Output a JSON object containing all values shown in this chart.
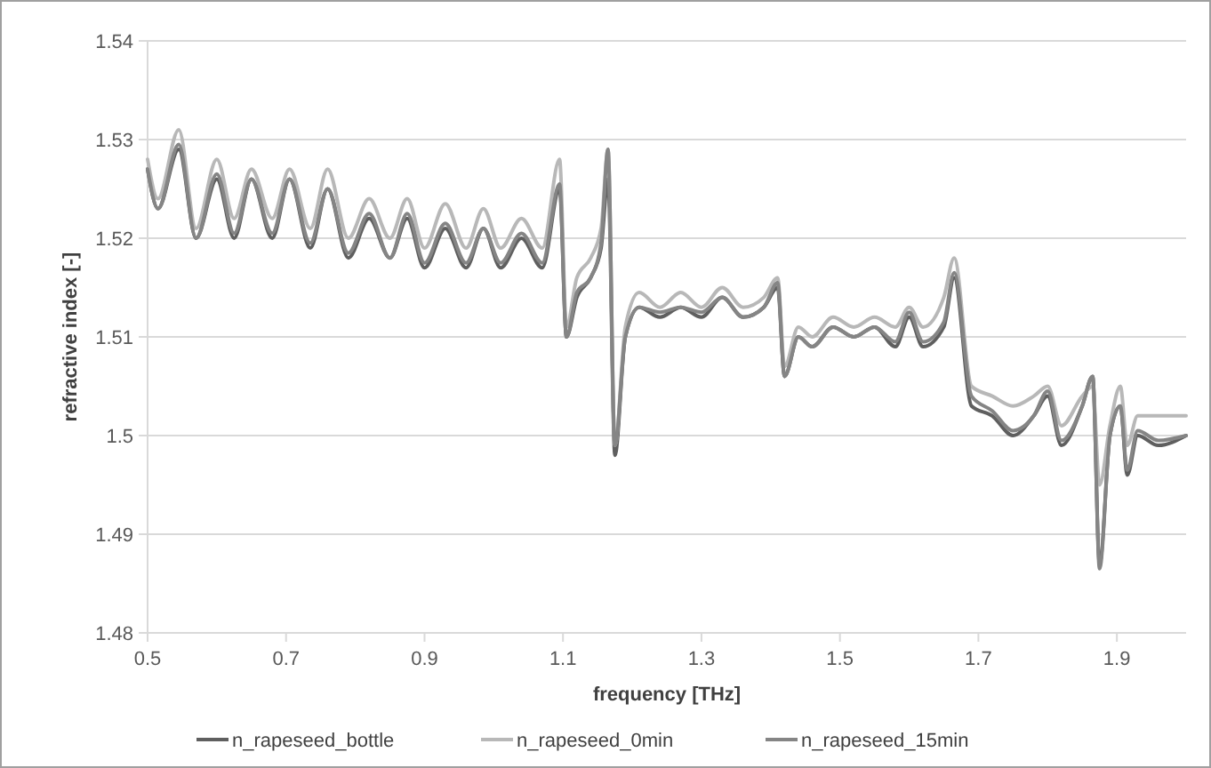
{
  "chart_data": {
    "type": "line",
    "xlabel": "frequency [THz]",
    "ylabel": "refractive index [-]",
    "x": [
      0.5,
      0.515,
      0.545,
      0.57,
      0.6,
      0.625,
      0.65,
      0.68,
      0.705,
      0.735,
      0.76,
      0.79,
      0.82,
      0.85,
      0.875,
      0.9,
      0.93,
      0.96,
      0.985,
      1.01,
      1.04,
      1.07,
      1.095,
      1.105,
      1.12,
      1.14,
      1.155,
      1.165,
      1.175,
      1.19,
      1.21,
      1.24,
      1.27,
      1.3,
      1.33,
      1.36,
      1.39,
      1.41,
      1.42,
      1.44,
      1.46,
      1.49,
      1.52,
      1.55,
      1.58,
      1.6,
      1.62,
      1.65,
      1.665,
      1.69,
      1.72,
      1.75,
      1.78,
      1.8,
      1.82,
      1.85,
      1.865,
      1.875,
      1.89,
      1.905,
      1.915,
      1.93,
      1.96,
      2.0
    ],
    "series": [
      {
        "name": "n_rapeseed_bottle",
        "color": "#5f5f5f",
        "values": [
          1.527,
          1.523,
          1.529,
          1.52,
          1.526,
          1.52,
          1.526,
          1.52,
          1.526,
          1.519,
          1.525,
          1.518,
          1.522,
          1.518,
          1.522,
          1.517,
          1.521,
          1.517,
          1.521,
          1.517,
          1.52,
          1.517,
          1.525,
          1.51,
          1.514,
          1.516,
          1.519,
          1.526,
          1.498,
          1.51,
          1.513,
          1.512,
          1.513,
          1.512,
          1.514,
          1.512,
          1.513,
          1.515,
          1.506,
          1.51,
          1.509,
          1.511,
          1.51,
          1.511,
          1.509,
          1.512,
          1.509,
          1.511,
          1.516,
          1.503,
          1.502,
          1.5,
          1.502,
          1.504,
          1.499,
          1.503,
          1.506,
          1.487,
          1.5,
          1.503,
          1.496,
          1.5,
          1.499,
          1.5
        ]
      },
      {
        "name": "n_rapeseed_0min",
        "color": "#b8b8b8",
        "values": [
          1.528,
          1.524,
          1.531,
          1.521,
          1.528,
          1.522,
          1.527,
          1.522,
          1.527,
          1.521,
          1.527,
          1.52,
          1.524,
          1.52,
          1.524,
          1.519,
          1.5235,
          1.519,
          1.523,
          1.519,
          1.522,
          1.519,
          1.528,
          1.511,
          1.516,
          1.518,
          1.521,
          1.529,
          1.499,
          1.511,
          1.5145,
          1.513,
          1.5145,
          1.513,
          1.515,
          1.513,
          1.514,
          1.516,
          1.507,
          1.511,
          1.51,
          1.512,
          1.511,
          1.512,
          1.511,
          1.513,
          1.511,
          1.514,
          1.518,
          1.505,
          1.504,
          1.503,
          1.504,
          1.505,
          1.501,
          1.504,
          1.505,
          1.495,
          1.501,
          1.505,
          1.499,
          1.502,
          1.502,
          1.502
        ]
      },
      {
        "name": "n_rapeseed_15min",
        "color": "#858585",
        "values": [
          1.527,
          1.523,
          1.5295,
          1.52,
          1.5265,
          1.5205,
          1.526,
          1.5205,
          1.526,
          1.5195,
          1.525,
          1.5185,
          1.5225,
          1.518,
          1.5225,
          1.5175,
          1.5215,
          1.5175,
          1.521,
          1.5175,
          1.5205,
          1.5175,
          1.5255,
          1.51,
          1.5145,
          1.516,
          1.5195,
          1.529,
          1.499,
          1.51,
          1.513,
          1.5125,
          1.513,
          1.5125,
          1.514,
          1.512,
          1.513,
          1.5155,
          1.506,
          1.51,
          1.509,
          1.511,
          1.51,
          1.511,
          1.5095,
          1.5125,
          1.5095,
          1.5115,
          1.5165,
          1.504,
          1.5025,
          1.5005,
          1.502,
          1.5045,
          1.4995,
          1.503,
          1.506,
          1.4865,
          1.5,
          1.503,
          1.4965,
          1.5005,
          1.4995,
          1.5
        ]
      }
    ],
    "xlim": [
      0.5,
      2.0
    ],
    "xticks": [
      0.5,
      0.7,
      0.9,
      1.1,
      1.3,
      1.5,
      1.7,
      1.9
    ],
    "ylim": [
      1.48,
      1.54
    ],
    "yticks": [
      1.48,
      1.49,
      1.5,
      1.51,
      1.52,
      1.53,
      1.54
    ],
    "grid": "y",
    "legend": "bottom",
    "marker": "none",
    "line_style": "solid"
  }
}
